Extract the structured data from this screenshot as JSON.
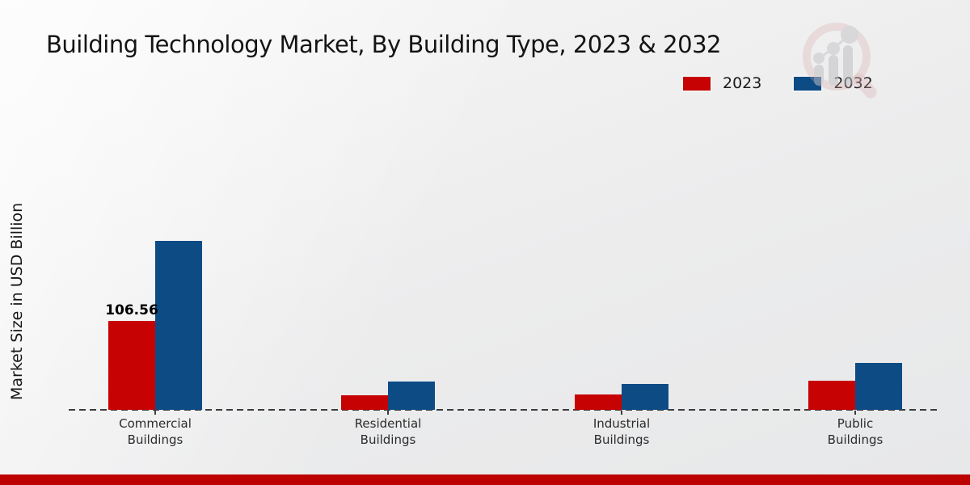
{
  "header": {
    "title": "Building Technology Market, By Building Type, 2023 & 2032"
  },
  "branding": {
    "logo_icon": "magnifier-bar-chart-logo",
    "accent_color": "#bd0101"
  },
  "chart_data": {
    "type": "bar",
    "title": "Building Technology Market, By Building Type, 2023 & 2032",
    "xlabel": "",
    "ylabel": "Market Size in USD Billion",
    "unit": "USD Billion",
    "categories": [
      "Commercial Buildings",
      "Residential Buildings",
      "Industrial Buildings",
      "Public Buildings"
    ],
    "series": [
      {
        "name": "2023",
        "color": "#c70202",
        "values": [
          106.56,
          17.5,
          18.5,
          35
        ]
      },
      {
        "name": "2032",
        "color": "#0d4b85",
        "values": [
          202,
          34,
          31,
          56
        ]
      }
    ],
    "annotations": [
      {
        "category_index": 0,
        "series_index": 0,
        "text": "106.56"
      }
    ],
    "ylim": [
      0,
      220
    ],
    "grid": false,
    "baseline_style": "dashed",
    "legend_position": "top-right"
  }
}
